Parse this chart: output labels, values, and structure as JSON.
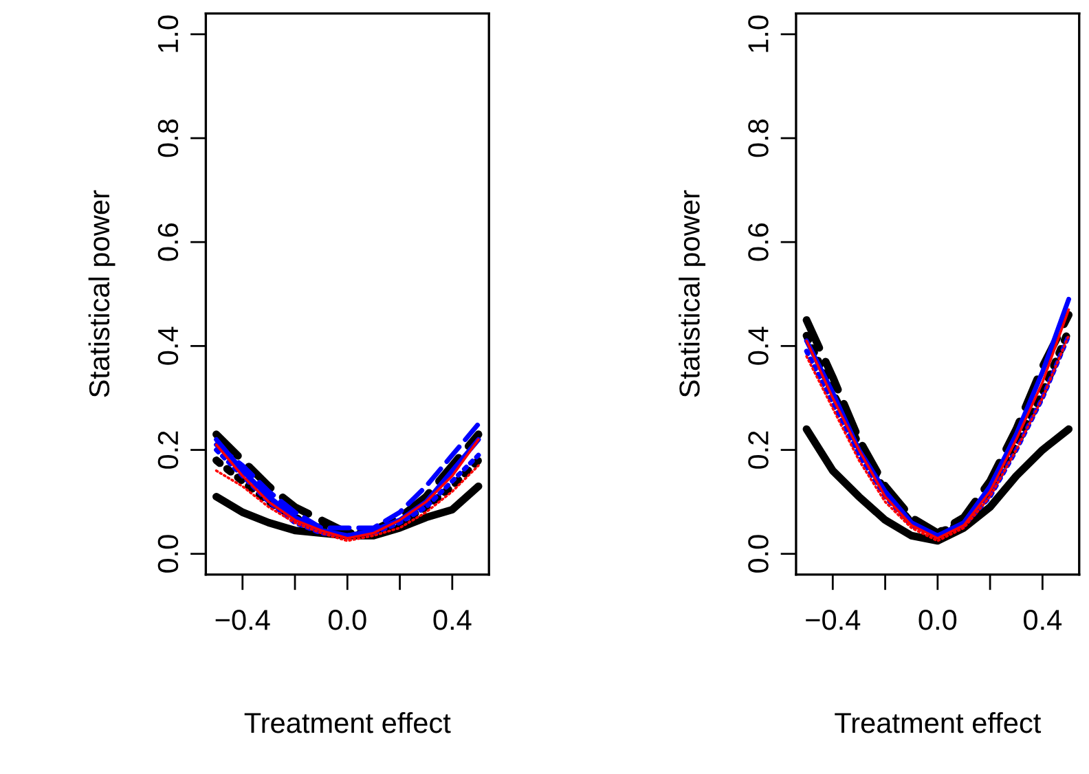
{
  "chart_data": [
    {
      "type": "line",
      "xlabel": "Treatment effect",
      "ylabel": "Statistical power",
      "x": [
        -0.5,
        -0.4,
        -0.3,
        -0.2,
        -0.1,
        0.0,
        0.1,
        0.2,
        0.3,
        0.4,
        0.5
      ],
      "xlim": [
        -0.54,
        0.54
      ],
      "ylim": [
        -0.04,
        1.04
      ],
      "xticks": [
        {
          "value": -0.4,
          "label": "−0.4"
        },
        {
          "value": -0.2,
          "label": null
        },
        {
          "value": 0.0,
          "label": "0.0"
        },
        {
          "value": 0.2,
          "label": null
        },
        {
          "value": 0.4,
          "label": "0.4"
        }
      ],
      "yticks": [
        {
          "value": 0,
          "label": "0.0"
        },
        {
          "value": 0.2,
          "label": "0.2"
        },
        {
          "value": 0.4,
          "label": "0.4"
        },
        {
          "value": 0.6,
          "label": "0.6"
        },
        {
          "value": 0.8,
          "label": "0.8"
        },
        {
          "value": 1,
          "label": "1.0"
        }
      ],
      "grid": false,
      "legend": false,
      "series": [
        {
          "color": "#000000",
          "line_style": "solid",
          "values": [
            0.11,
            0.08,
            0.06,
            0.045,
            0.04,
            0.035,
            0.035,
            0.05,
            0.07,
            0.085,
            0.13
          ]
        },
        {
          "color": "#000000",
          "line_style": "dashed",
          "values": [
            0.23,
            0.18,
            0.13,
            0.09,
            0.065,
            0.04,
            0.045,
            0.07,
            0.11,
            0.17,
            0.23
          ]
        },
        {
          "color": "#000000",
          "line_style": "dotted",
          "values": [
            0.18,
            0.14,
            0.1,
            0.07,
            0.05,
            0.04,
            0.04,
            0.06,
            0.09,
            0.13,
            0.18
          ]
        },
        {
          "color": "#ff0000",
          "line_style": "solid",
          "values": [
            0.21,
            0.15,
            0.1,
            0.065,
            0.045,
            0.03,
            0.04,
            0.065,
            0.1,
            0.15,
            0.22
          ]
        },
        {
          "color": "#ff0000",
          "line_style": "dotted",
          "values": [
            0.16,
            0.13,
            0.09,
            0.06,
            0.04,
            0.025,
            0.035,
            0.05,
            0.08,
            0.12,
            0.17
          ]
        },
        {
          "color": "#0000ff",
          "line_style": "solid",
          "values": [
            0.22,
            0.16,
            0.11,
            0.07,
            0.045,
            0.035,
            0.045,
            0.065,
            0.1,
            0.16,
            0.22
          ]
        },
        {
          "color": "#0000ff",
          "line_style": "dashed",
          "values": [
            0.21,
            0.17,
            0.12,
            0.08,
            0.05,
            0.05,
            0.05,
            0.08,
            0.13,
            0.19,
            0.25
          ]
        },
        {
          "color": "#0000ff",
          "line_style": "dotted",
          "values": [
            0.2,
            0.15,
            0.1,
            0.06,
            0.04,
            0.035,
            0.04,
            0.06,
            0.09,
            0.14,
            0.19
          ]
        }
      ]
    },
    {
      "type": "line",
      "xlabel": "Treatment effect",
      "ylabel": "Statistical power",
      "x": [
        -0.5,
        -0.4,
        -0.3,
        -0.2,
        -0.1,
        0.0,
        0.1,
        0.2,
        0.3,
        0.4,
        0.5
      ],
      "xlim": [
        -0.54,
        0.54
      ],
      "ylim": [
        -0.04,
        1.04
      ],
      "xticks": [
        {
          "value": -0.4,
          "label": "−0.4"
        },
        {
          "value": -0.2,
          "label": null
        },
        {
          "value": 0.0,
          "label": "0.0"
        },
        {
          "value": 0.2,
          "label": null
        },
        {
          "value": 0.4,
          "label": "0.4"
        }
      ],
      "yticks": [
        {
          "value": 0,
          "label": "0.0"
        },
        {
          "value": 0.2,
          "label": "0.2"
        },
        {
          "value": 0.4,
          "label": "0.4"
        },
        {
          "value": 0.6,
          "label": "0.6"
        },
        {
          "value": 0.8,
          "label": "0.8"
        },
        {
          "value": 1,
          "label": "1.0"
        }
      ],
      "grid": false,
      "legend": false,
      "series": [
        {
          "color": "#000000",
          "line_style": "solid",
          "values": [
            0.24,
            0.16,
            0.11,
            0.065,
            0.035,
            0.025,
            0.05,
            0.09,
            0.15,
            0.2,
            0.24
          ]
        },
        {
          "color": "#000000",
          "line_style": "dashed",
          "values": [
            0.45,
            0.34,
            0.22,
            0.13,
            0.07,
            0.04,
            0.07,
            0.14,
            0.24,
            0.36,
            0.46
          ]
        },
        {
          "color": "#000000",
          "line_style": "dotted",
          "values": [
            0.42,
            0.31,
            0.21,
            0.12,
            0.06,
            0.04,
            0.06,
            0.12,
            0.21,
            0.31,
            0.43
          ]
        },
        {
          "color": "#ff0000",
          "line_style": "solid",
          "values": [
            0.41,
            0.3,
            0.2,
            0.11,
            0.055,
            0.03,
            0.055,
            0.12,
            0.22,
            0.33,
            0.47
          ]
        },
        {
          "color": "#ff0000",
          "line_style": "dotted",
          "values": [
            0.38,
            0.28,
            0.18,
            0.1,
            0.05,
            0.025,
            0.05,
            0.11,
            0.2,
            0.3,
            0.42
          ]
        },
        {
          "color": "#0000ff",
          "line_style": "solid",
          "values": [
            0.41,
            0.31,
            0.2,
            0.12,
            0.06,
            0.035,
            0.06,
            0.13,
            0.23,
            0.35,
            0.49
          ]
        },
        {
          "color": "#0000ff",
          "line_style": "dotted",
          "values": [
            0.39,
            0.29,
            0.19,
            0.11,
            0.055,
            0.035,
            0.055,
            0.11,
            0.2,
            0.3,
            0.42
          ]
        }
      ]
    }
  ]
}
